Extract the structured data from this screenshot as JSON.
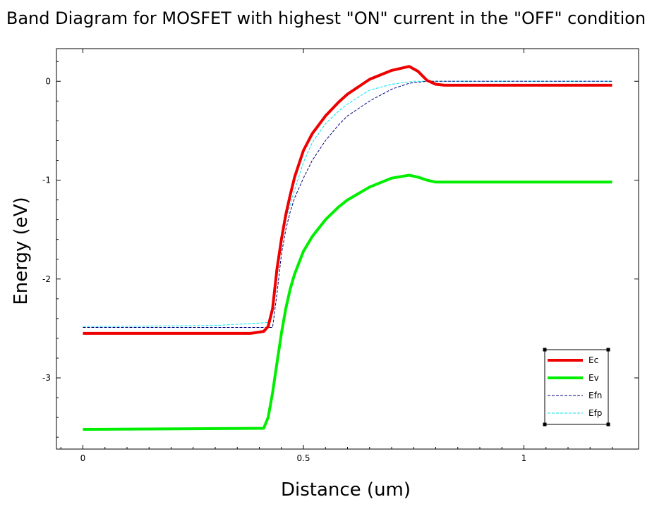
{
  "chart_data": {
    "type": "line",
    "title": "Band Diagram for MOSFET with highest \"ON\" current in the \"OFF\" condition",
    "xlabel": "Distance (um)",
    "ylabel": "Energy (eV)",
    "xlim": [
      -0.06,
      1.26
    ],
    "ylim": [
      -3.72,
      0.33
    ],
    "xticks": [
      {
        "value": 0,
        "label": "0"
      },
      {
        "value": 0.5,
        "label": "0.5"
      },
      {
        "value": 1,
        "label": "1"
      }
    ],
    "yticks": [
      {
        "value": 0,
        "label": "0"
      },
      {
        "value": -1,
        "label": "-1"
      },
      {
        "value": -2,
        "label": "-2"
      },
      {
        "value": -3,
        "label": "-3"
      }
    ],
    "grid": false,
    "legend_position": "bottom-right",
    "series": [
      {
        "name": "Ec",
        "color": "#ee0000",
        "style": "solid",
        "x": [
          0,
          0.38,
          0.41,
          0.42,
          0.43,
          0.44,
          0.45,
          0.46,
          0.47,
          0.48,
          0.5,
          0.52,
          0.55,
          0.58,
          0.6,
          0.65,
          0.7,
          0.74,
          0.76,
          0.78,
          0.8,
          0.82,
          1.2
        ],
        "y": [
          -2.55,
          -2.55,
          -2.53,
          -2.48,
          -2.3,
          -1.9,
          -1.6,
          -1.35,
          -1.15,
          -0.97,
          -0.7,
          -0.53,
          -0.35,
          -0.21,
          -0.13,
          0.02,
          0.11,
          0.15,
          0.1,
          0.01,
          -0.03,
          -0.04,
          -0.04
        ]
      },
      {
        "name": "Ev",
        "color": "#00ee00",
        "style": "solid",
        "x": [
          0,
          0.41,
          0.42,
          0.43,
          0.44,
          0.45,
          0.46,
          0.47,
          0.48,
          0.5,
          0.52,
          0.55,
          0.58,
          0.6,
          0.65,
          0.7,
          0.74,
          0.76,
          0.78,
          0.8,
          1.2
        ],
        "y": [
          -3.52,
          -3.51,
          -3.4,
          -3.15,
          -2.85,
          -2.55,
          -2.3,
          -2.1,
          -1.95,
          -1.72,
          -1.57,
          -1.4,
          -1.27,
          -1.2,
          -1.07,
          -0.98,
          -0.95,
          -0.97,
          -1.0,
          -1.02,
          -1.02
        ]
      },
      {
        "name": "Efn",
        "color": "#000080",
        "style": "dashed",
        "x": [
          0,
          0.43,
          0.44,
          0.45,
          0.46,
          0.47,
          0.48,
          0.5,
          0.52,
          0.55,
          0.58,
          0.6,
          0.65,
          0.7,
          0.74,
          0.78,
          1.2
        ],
        "y": [
          -2.49,
          -2.49,
          -2.15,
          -1.75,
          -1.5,
          -1.32,
          -1.18,
          -0.98,
          -0.8,
          -0.6,
          -0.44,
          -0.35,
          -0.2,
          -0.08,
          -0.02,
          0.0,
          0.0
        ]
      },
      {
        "name": "Efp",
        "color": "#00e5ee",
        "style": "dashed",
        "x": [
          0,
          0.3,
          0.42,
          0.43,
          0.44,
          0.45,
          0.46,
          0.48,
          0.5,
          0.52,
          0.55,
          0.58,
          0.6,
          0.65,
          0.7,
          0.75,
          0.8,
          1.2
        ],
        "y": [
          -2.48,
          -2.47,
          -2.44,
          -2.35,
          -1.95,
          -1.6,
          -1.4,
          -1.1,
          -0.82,
          -0.62,
          -0.43,
          -0.3,
          -0.23,
          -0.09,
          -0.03,
          0.0,
          0.0,
          0.0
        ]
      }
    ]
  }
}
